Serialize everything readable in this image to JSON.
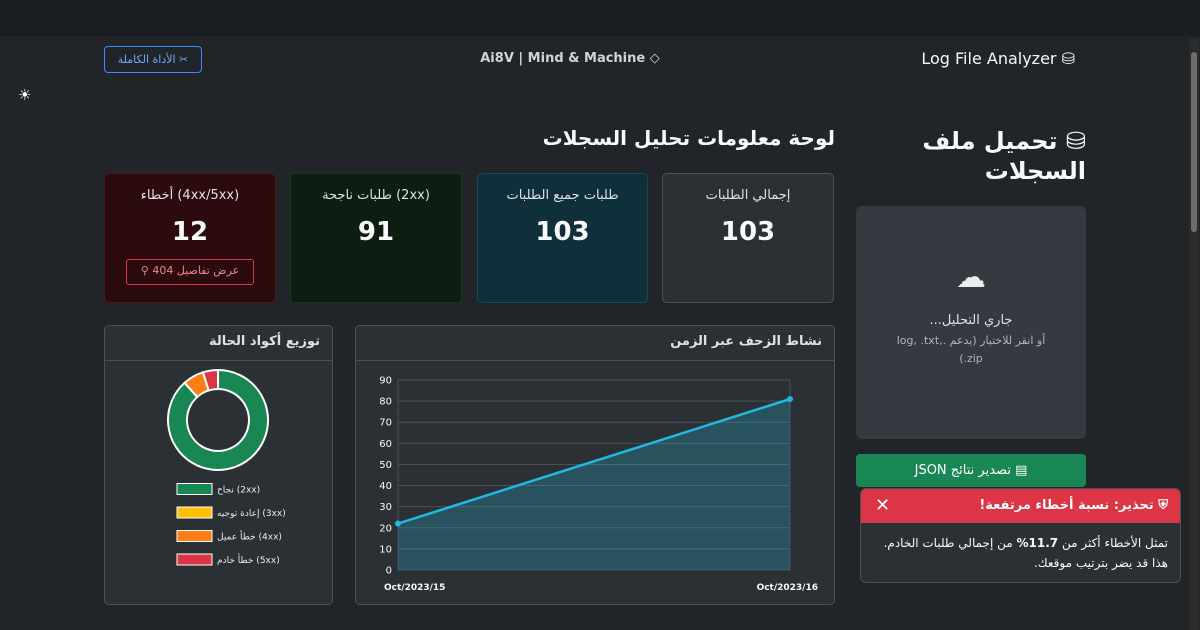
{
  "nav": {
    "tool_button": "الأداة الكاملة",
    "brand": "Ai8V | Mind & Machine",
    "app_title": "Log File Analyzer"
  },
  "sidebar": {
    "title": "تحميل ملف السجلات",
    "status": "جاري التحليل...",
    "hint": "أو انقر للاختيار (يدعم .log, .txt, .zip)",
    "export_button": "تصدير نتائج JSON"
  },
  "dashboard": {
    "title": "لوحة معلومات تحليل السجلات",
    "cards": [
      {
        "label": "إجمالي الطلبات",
        "value": 103
      },
      {
        "label": "طلبات جميع الطلبات",
        "value": 103
      },
      {
        "label": "طلبات ناجحة (2xx)",
        "value": 91
      },
      {
        "label": "أخطاء (4xx/5xx)",
        "value": 12
      }
    ],
    "details_button": "عرض تفاصيل 404"
  },
  "toast": {
    "title": "تحذير: نسبة أخطاء مرتفعة!",
    "body_before": "تمثل الأخطاء أكثر من",
    "body_bold": "11.7%",
    "body_after": "من إجمالي طلبات الخادم. هذا قد يضر بترتيب موقعك."
  },
  "chart_data": [
    {
      "type": "donut",
      "title": "توزيع أكواد الحالة",
      "categories": [
        "نجاح (2xx)",
        "إعادة توجيه (3xx)",
        "خطأ عميل (4xx)",
        "خطأ خادم (5xx)"
      ],
      "values": [
        91,
        0,
        7,
        5
      ],
      "colors": [
        "#198754",
        "#ffc107",
        "#fd7e14",
        "#dc3545"
      ]
    },
    {
      "type": "line",
      "title": "نشاط الزحف عبر الزمن",
      "categories": [
        "Oct/2023/15",
        "Oct/2023/16"
      ],
      "values": [
        22,
        81
      ],
      "color": "#22b8e0",
      "ylim": [
        0,
        90
      ],
      "yticks": [
        0,
        10,
        20,
        30,
        40,
        50,
        60,
        70,
        80,
        90
      ],
      "grid": true
    }
  ]
}
